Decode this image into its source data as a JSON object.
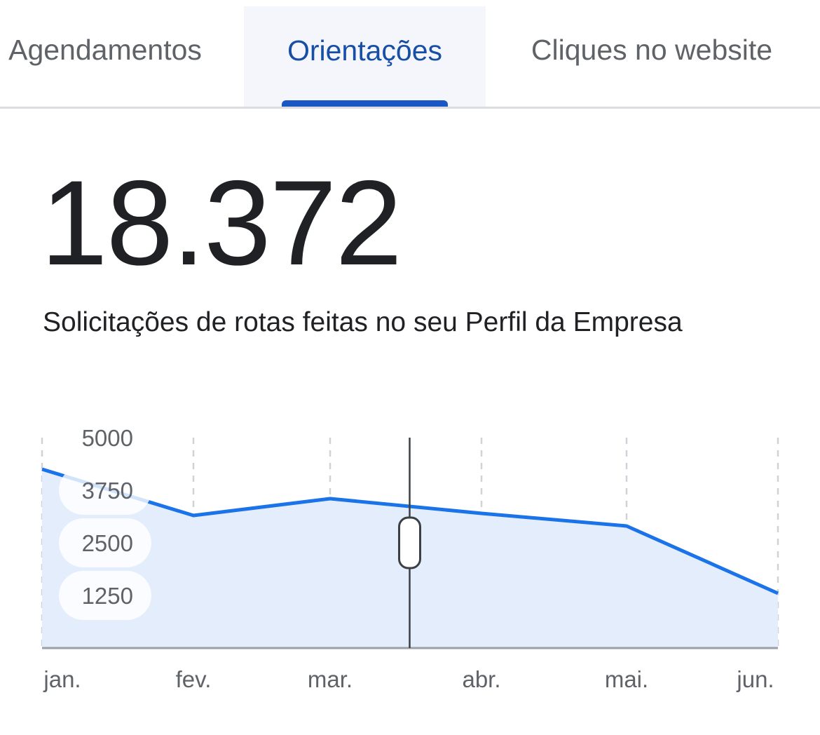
{
  "tabs": [
    {
      "label": "Agendamentos",
      "active": false
    },
    {
      "label": "Orientações",
      "active": true
    },
    {
      "label": "Cliques no website",
      "active": false
    }
  ],
  "summary": {
    "total": "18.372",
    "description": "Solicitações de rotas feitas no seu Perfil da Empresa"
  },
  "colors": {
    "accent": "#1a73e8",
    "area_fill": "#e3edfc",
    "active_tab_text": "#174ea6",
    "active_tab_bg": "#f4f6fb",
    "text": "#202124",
    "muted": "#5f6368"
  },
  "chart_data": {
    "type": "area",
    "categories": [
      "jan.",
      "fev.",
      "mar.",
      "abr.",
      "mai.",
      "jun."
    ],
    "values": [
      4250,
      3150,
      3550,
      3200,
      2900,
      1300
    ],
    "y_ticks": [
      "5000",
      "3750",
      "2500",
      "1250"
    ],
    "ylim": [
      0,
      5000
    ],
    "grid": "vertical dashed",
    "cursor": {
      "x_between": [
        "mar.",
        "abr."
      ],
      "x_fraction": 0.53
    }
  }
}
